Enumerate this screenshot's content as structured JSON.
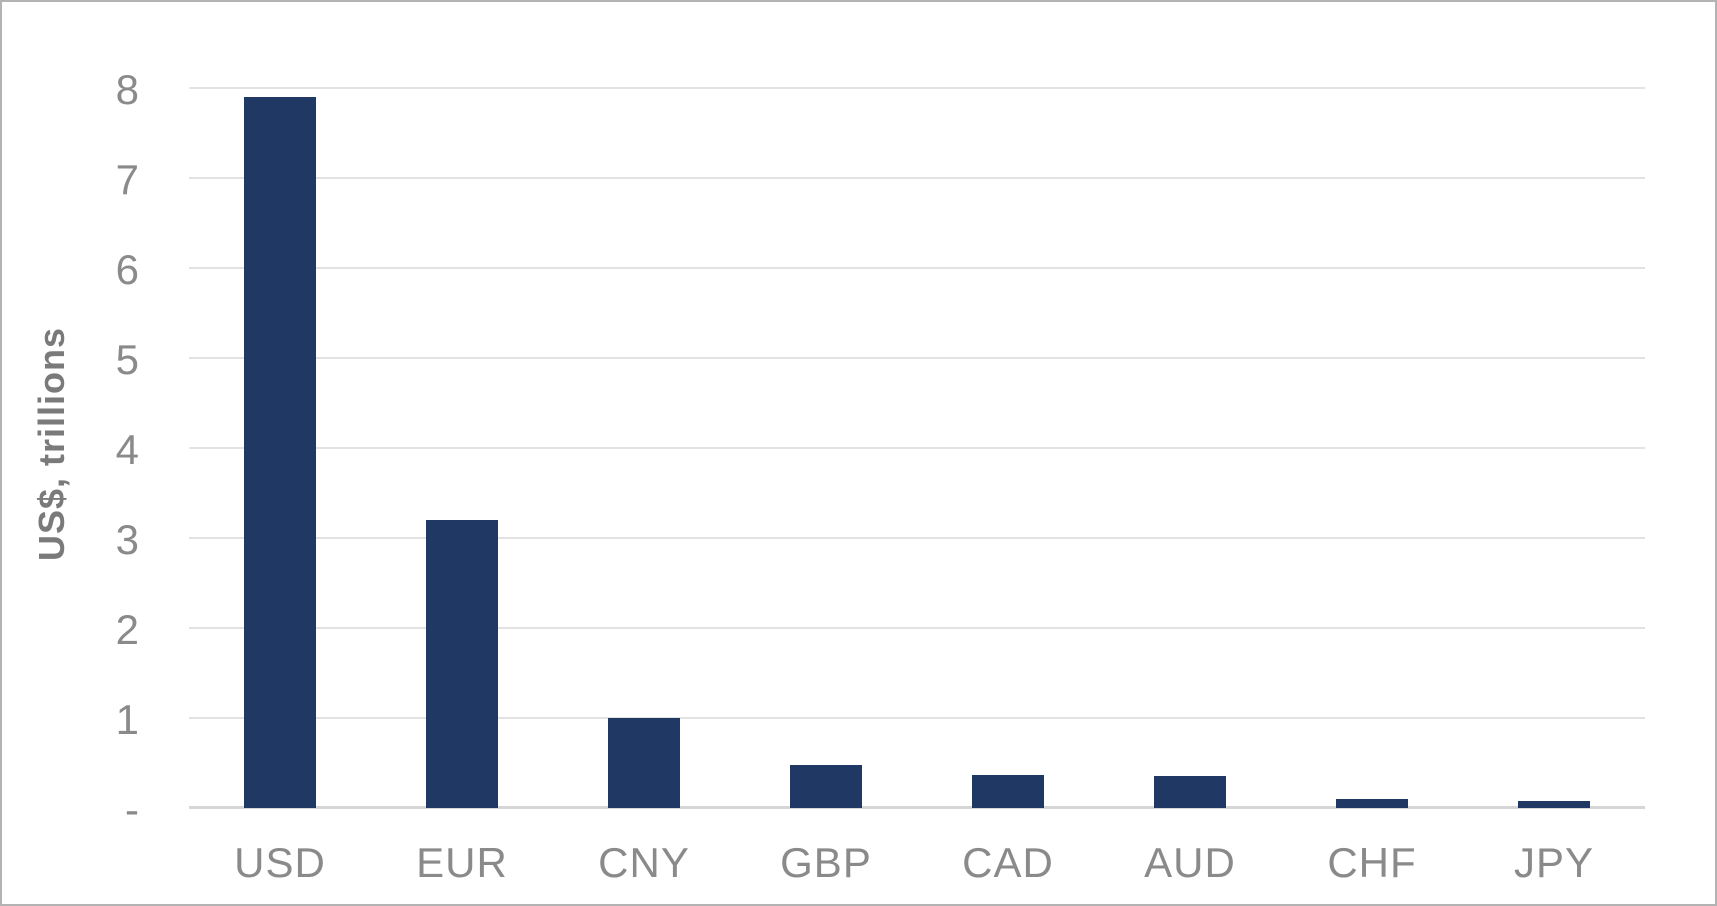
{
  "chart_data": {
    "type": "bar",
    "title": "",
    "categories": [
      "USD",
      "EUR",
      "CNY",
      "GBP",
      "CAD",
      "AUD",
      "CHF",
      "JPY"
    ],
    "values": [
      7.9,
      3.2,
      1.0,
      0.48,
      0.37,
      0.36,
      0.1,
      0.08
    ],
    "series": [
      {
        "name": "US$, trillions",
        "values": [
          7.9,
          3.2,
          1.0,
          0.48,
          0.37,
          0.36,
          0.1,
          0.08
        ]
      }
    ],
    "xlabel": "",
    "ylabel": "US$, trillions",
    "ylim": [
      0,
      8
    ],
    "ytick_interval": 1,
    "ytick_labels": [
      "8",
      "7",
      "6",
      "5",
      "4",
      "3",
      "2",
      "1",
      "-"
    ],
    "grid": "horizontal-on",
    "legend": "none",
    "bar_color": "#1f3864",
    "colors": {
      "bar": "#1f3864",
      "axis_text": "#8a8a8a",
      "axis_title_text": "#7a7a7a",
      "gridline": "#e2e2e2",
      "baseline": "#d6d6d6",
      "frame_border": "#b3b3b3",
      "background": "#ffffff"
    }
  }
}
